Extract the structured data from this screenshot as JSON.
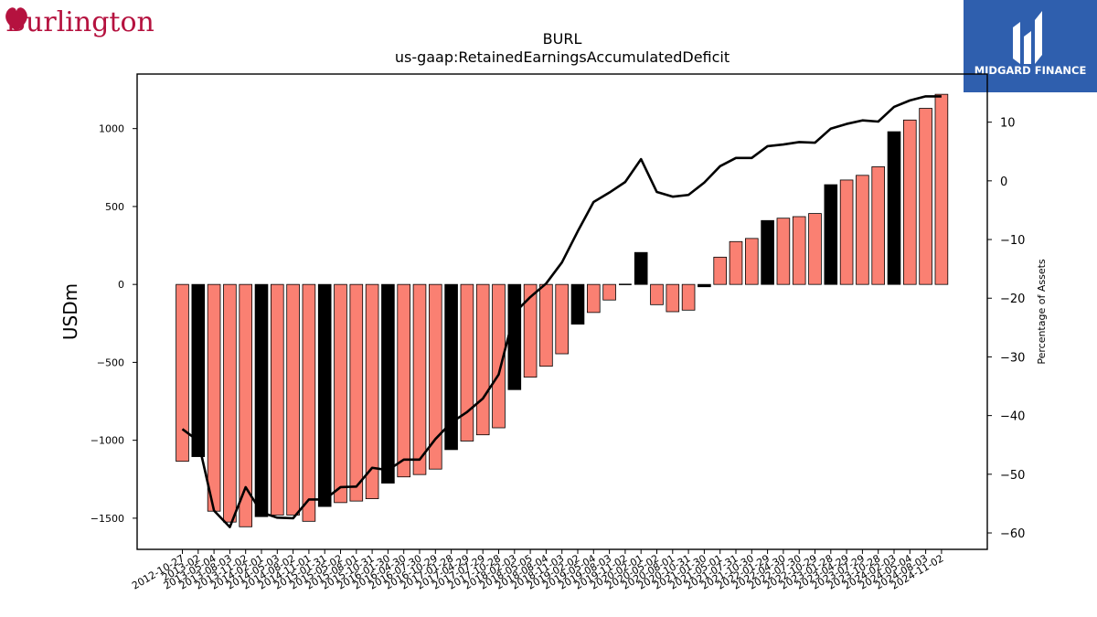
{
  "brand_left": {
    "text": "Burlington",
    "color": "#b5123f"
  },
  "brand_right": {
    "text": "MIDGARD FINANCE",
    "bg_color": "#2f5fae"
  },
  "chart_data": {
    "type": "bar",
    "title": "BURL",
    "subtitle": "us-gaap:RetainedEarningsAccumulatedDeficit",
    "ylabel": "USDm",
    "y2label": "Percentage of Assets",
    "ylim": [
      -1700,
      1350
    ],
    "y2lim": [
      -62.8,
      18.2
    ],
    "yticks": [
      -1500,
      -1000,
      -500,
      0,
      500,
      1000
    ],
    "y2ticks": [
      -60,
      -50,
      -40,
      -30,
      -20,
      -10,
      0,
      10
    ],
    "colors": {
      "bar_default": "#fa8072",
      "bar_highlight": "#000000",
      "line": "#000000"
    },
    "categories": [
      "2012-10-27",
      "2013-02",
      "2013-05-04",
      "2013-08-03",
      "2013-11-02",
      "2014-02-01",
      "2014-05-03",
      "2014-08-02",
      "2014-11-01",
      "2015-01-31",
      "2015-05-02",
      "2015-08-01",
      "2015-10-31",
      "2016-01-30",
      "2016-04-30",
      "2016-07-30",
      "2016-10-29",
      "2017-01-28",
      "2017-04-29",
      "2017-07-29",
      "2017-10-28",
      "2018-02-03",
      "2018-05-05",
      "2018-08-04",
      "2018-11-03",
      "2019-02-02",
      "2019-05-04",
      "2019-08-03",
      "2019-11-02",
      "2020-02-01",
      "2020-05-02",
      "2020-08-01",
      "2020-10-31",
      "2021-01-30",
      "2021-05-01",
      "2021-07-31",
      "2021-10-30",
      "2022-01-29",
      "2022-04-30",
      "2022-07-30",
      "2022-10-29",
      "2023-01-28",
      "2023-04-29",
      "2023-07-29",
      "2023-10-28",
      "2024-02-03",
      "2024-05-04",
      "2024-08-03",
      "2024-11-02"
    ],
    "values": [
      -1135,
      -1105,
      -1455,
      -1525,
      -1555,
      -1490,
      -1480,
      -1480,
      -1520,
      -1425,
      -1400,
      -1390,
      -1375,
      -1275,
      -1235,
      -1220,
      -1185,
      -1060,
      -1005,
      -965,
      -920,
      -675,
      -595,
      -525,
      -445,
      -255,
      -180,
      -100,
      -5,
      205,
      -130,
      -175,
      -165,
      -15,
      175,
      275,
      295,
      410,
      425,
      435,
      455,
      640,
      670,
      700,
      755,
      980,
      1055,
      1130,
      1220
    ],
    "highlight": [
      false,
      true,
      false,
      false,
      false,
      true,
      false,
      false,
      false,
      true,
      false,
      false,
      false,
      true,
      false,
      false,
      false,
      true,
      false,
      false,
      false,
      true,
      false,
      false,
      false,
      true,
      false,
      false,
      false,
      true,
      false,
      false,
      false,
      true,
      false,
      false,
      false,
      true,
      false,
      false,
      false,
      true,
      false,
      false,
      false,
      true,
      false,
      false,
      false
    ],
    "series": [
      {
        "axis": "right",
        "type": "line",
        "values": [
          -42.3,
          -44.3,
          -56.2,
          -59.0,
          -52.2,
          -56.5,
          -57.4,
          -57.5,
          -54.3,
          -54.3,
          -52.2,
          -52.1,
          -48.9,
          -49.3,
          -47.5,
          -47.5,
          -44.0,
          -41.2,
          -39.4,
          -37.1,
          -33.0,
          -22.5,
          -19.8,
          -17.5,
          -13.9,
          -8.6,
          -3.6,
          -2.0,
          -0.2,
          3.7,
          -1.9,
          -2.7,
          -2.4,
          -0.3,
          2.5,
          3.9,
          3.9,
          5.9,
          6.2,
          6.6,
          6.5,
          8.9,
          9.7,
          10.3,
          10.1,
          12.6,
          13.7,
          14.4,
          14.4
        ]
      }
    ]
  }
}
